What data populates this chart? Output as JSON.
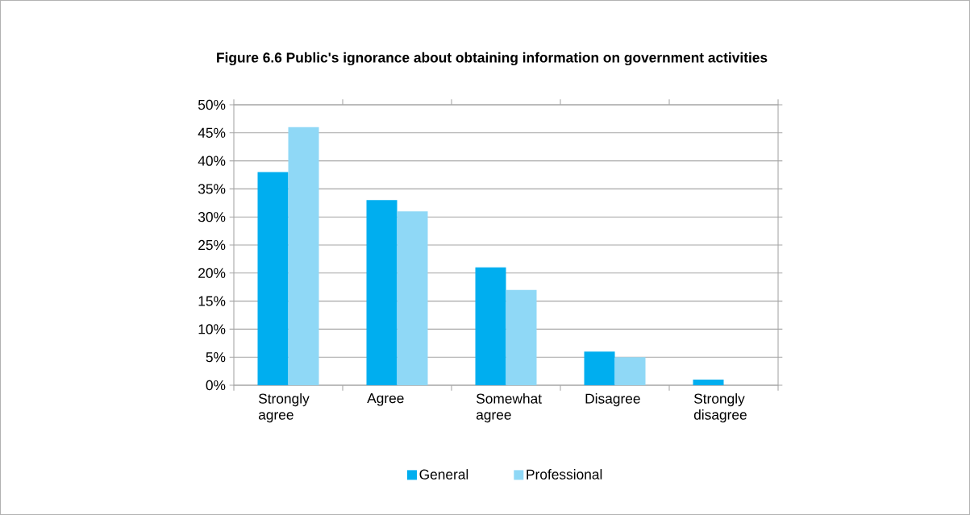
{
  "chart_data": {
    "type": "bar",
    "title": "Figure 6.6 Public's ignorance about obtaining information on government activities",
    "categories": [
      "Strongly agree",
      "Agree",
      "Somewhat agree",
      "Disagree",
      "Strongly disagree"
    ],
    "series": [
      {
        "name": "General",
        "color": "#00aeef",
        "values": [
          38,
          33,
          21,
          6,
          1
        ]
      },
      {
        "name": "Professional",
        "color": "#8fd8f6",
        "values": [
          46,
          31,
          17,
          5,
          0
        ]
      }
    ],
    "ylim": [
      0,
      50
    ],
    "yticks": [
      {
        "value": 0,
        "label": "0%"
      },
      {
        "value": 5,
        "label": "5%"
      },
      {
        "value": 10,
        "label": "10%"
      },
      {
        "value": 15,
        "label": "15%"
      },
      {
        "value": 20,
        "label": "20%"
      },
      {
        "value": 25,
        "label": "25%"
      },
      {
        "value": 30,
        "label": "30%"
      },
      {
        "value": 35,
        "label": "35%"
      },
      {
        "value": 40,
        "label": "40%"
      },
      {
        "value": 45,
        "label": "45%"
      },
      {
        "value": 50,
        "label": "50%"
      }
    ],
    "grid": "y",
    "legend": "bottom"
  }
}
